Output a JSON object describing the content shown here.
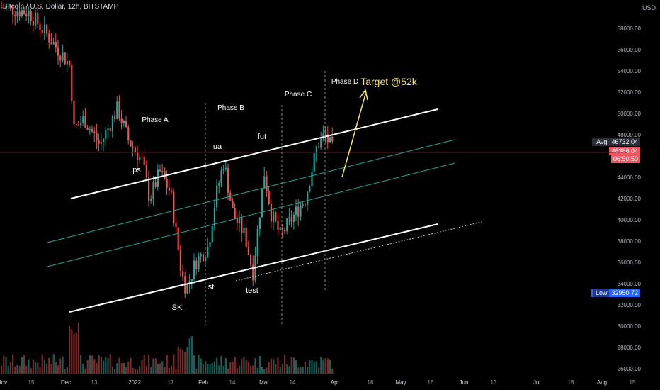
{
  "header": {
    "symbol": "Bitcoin / U.S. Dollar, 12h, BITSTAMP"
  },
  "price_axis": {
    "unit_label": "USD",
    "ticks": [
      "58000.00",
      "56000.00",
      "54000.00",
      "52000.00",
      "50000.00",
      "48000.00",
      "44000.00",
      "42000.00",
      "40000.00",
      "38000.00",
      "36000.00",
      "34000.00",
      "32000.00",
      "30000.00",
      "28000.00",
      "26000.00"
    ]
  },
  "badges": {
    "avg": {
      "tag": "Avg",
      "value": "46732.04"
    },
    "last": {
      "value": "46366.04",
      "countdown": "06:50:50"
    },
    "low": {
      "tag": "Low",
      "value": "32950.72"
    }
  },
  "time_axis": {
    "ticks": [
      "Nov",
      "15",
      "Dec",
      "13",
      "2022",
      "17",
      "Feb",
      "14",
      "Mar",
      "14",
      "Apr",
      "18",
      "May",
      "16",
      "Jun",
      "13",
      "Jul",
      "18",
      "Aug",
      "15"
    ]
  },
  "annotations": {
    "phase_a": "Phase A",
    "phase_b": "Phase B",
    "phase_c": "Phase C",
    "phase_d": "Phase D",
    "ps": "ps",
    "ua": "ua",
    "fut": "fut",
    "sk": "SK",
    "st": "st",
    "test": "test",
    "target": "Target @52k"
  },
  "colors": {
    "background": "#000000",
    "up": "#26a69a",
    "down": "#ef5350",
    "channel": "#ffffff",
    "mid_channel": "#26a69a",
    "target": "#f5e663",
    "avg_badge": "#2a2e39",
    "last_badge": "#f7525f",
    "low_badge": "#2962ff"
  },
  "chart_data": {
    "type": "candlestick",
    "title": "Bitcoin / U.S. Dollar, 12h, BITSTAMP",
    "yunit": "USD",
    "ylim": [
      25500,
      61500
    ],
    "x": [
      "Dec",
      "2022",
      "Feb",
      "Mar",
      "Apr"
    ],
    "series": [
      {
        "name": "approx_close",
        "points": [
          [
            "Nov 20",
            59000
          ],
          [
            "Nov 27",
            57000
          ],
          [
            "Dec 04",
            49000
          ],
          [
            "Dec 11",
            48500
          ],
          [
            "Dec 18",
            47000
          ],
          [
            "Dec 25",
            50500
          ],
          [
            "Jan 01",
            47000
          ],
          [
            "Jan 08",
            41800
          ],
          [
            "Jan 15",
            43000
          ],
          [
            "Jan 22",
            35000
          ],
          [
            "Jan 29",
            38000
          ],
          [
            "Feb 06",
            42500
          ],
          [
            "Feb 10",
            45500
          ],
          [
            "Feb 17",
            40000
          ],
          [
            "Feb 24",
            38500
          ],
          [
            "Mar 01",
            44000
          ],
          [
            "Mar 07",
            38500
          ],
          [
            "Mar 14",
            39500
          ],
          [
            "Mar 21",
            41500
          ],
          [
            "Mar 28",
            47500
          ],
          [
            "Apr 02",
            46366
          ]
        ]
      }
    ],
    "current_price": 46366.04,
    "average": 46732.04,
    "low": 32950.72,
    "target": 52000
  }
}
